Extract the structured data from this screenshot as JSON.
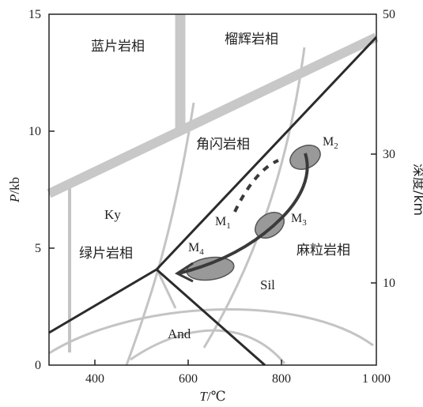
{
  "axes": {
    "x_label_italic": "T",
    "x_label_unit": "/℃",
    "y_left_label_italic": "P",
    "y_left_label_unit": "/kb",
    "y_right_label": "深度/km",
    "x_ticks": [
      "400",
      "600",
      "800",
      "1 000"
    ],
    "y_left_ticks": [
      "0",
      "5",
      "10",
      "15"
    ],
    "y_right_ticks": [
      "10",
      "30",
      "50"
    ]
  },
  "facies": {
    "blueschist": "蓝片岩相",
    "eclogite": "榴辉岩相",
    "amphibolite": "角闪岩相",
    "greenschist": "绿片岩相",
    "granulite": "麻粒岩相"
  },
  "minerals": {
    "kyanite": "Ky",
    "sillimanite": "Sil",
    "andalusite": "And"
  },
  "stages": [
    {
      "letter": "M",
      "sub": "1"
    },
    {
      "letter": "M",
      "sub": "2"
    },
    {
      "letter": "M",
      "sub": "3"
    },
    {
      "letter": "M",
      "sub": "4"
    }
  ],
  "colors": {
    "boundary_dark": "#2b2b2b",
    "facies_band": "#c8c8c8",
    "thin_curve": "#c4c4c4",
    "ellipse_fill": "#999999",
    "path": "#3a3a3a"
  }
}
